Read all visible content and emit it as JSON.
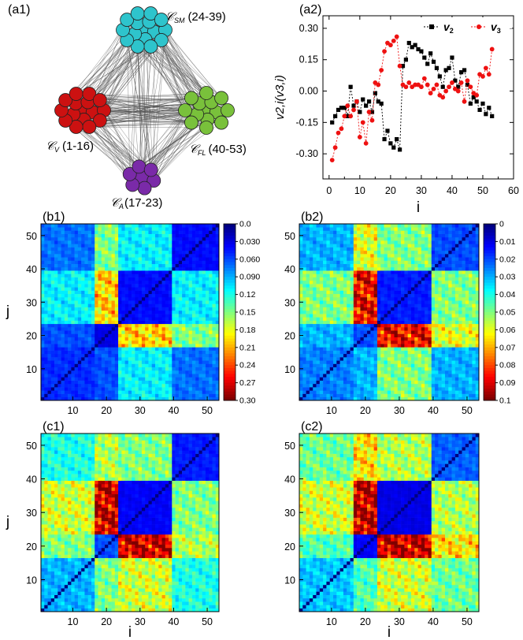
{
  "panels": {
    "a1": "(a1)",
    "a2": "(a2)",
    "b1": "(b1)",
    "b2": "(b2)",
    "c1": "(c1)",
    "c2": "(c2)"
  },
  "network": {
    "clusters": [
      {
        "id": "SM",
        "label": "𝒞SM (24-39)",
        "symbol": "𝒞",
        "sub": "SM",
        "range": "(24-39)",
        "count": 16,
        "color": "#2ec4cc"
      },
      {
        "id": "V",
        "label": "𝒞V (1-16)",
        "symbol": "𝒞",
        "sub": "V",
        "range": "(1-16)",
        "count": 16,
        "color": "#cc1111"
      },
      {
        "id": "FL",
        "label": "𝒞FL (40-53)",
        "symbol": "𝒞",
        "sub": "FL",
        "range": "(40-53)",
        "count": 14,
        "color": "#79c13b"
      },
      {
        "id": "A",
        "label": "𝒞A (17-23)",
        "symbol": "𝒞",
        "sub": "A",
        "range": "(17-23)",
        "count": 7,
        "color": "#7a2aa8"
      }
    ]
  },
  "chart_data": [
    {
      "type": "line",
      "panel": "a2",
      "xlabel": "i",
      "ylabel": "v2,i(v3,i)",
      "xlim": [
        -2,
        60
      ],
      "ylim": [
        -0.42,
        0.36
      ],
      "xticks": [
        "0",
        "10",
        "20",
        "30",
        "40",
        "50",
        "60"
      ],
      "yticks": [
        "0.30",
        "0.15",
        "0.00",
        "-0.15",
        "-0.30"
      ],
      "legend": [
        "v2",
        "v3"
      ],
      "colors": {
        "v2": "#000000",
        "v3": "#ee1111"
      },
      "x": [
        1,
        2,
        3,
        4,
        5,
        6,
        7,
        8,
        9,
        10,
        11,
        12,
        13,
        14,
        15,
        16,
        17,
        18,
        19,
        20,
        21,
        22,
        23,
        24,
        25,
        26,
        27,
        28,
        29,
        30,
        31,
        32,
        33,
        34,
        35,
        36,
        37,
        38,
        39,
        40,
        41,
        42,
        43,
        44,
        45,
        46,
        47,
        48,
        49,
        50,
        51,
        52,
        53
      ],
      "series": [
        {
          "name": "v2",
          "values": [
            -0.15,
            -0.12,
            -0.09,
            -0.08,
            -0.08,
            -0.12,
            0.02,
            -0.07,
            -0.05,
            -0.1,
            -0.04,
            -0.07,
            -0.05,
            -0.1,
            -0.01,
            -0.05,
            -0.06,
            -0.23,
            -0.19,
            -0.25,
            -0.27,
            -0.23,
            -0.28,
            0.12,
            0.15,
            0.23,
            0.21,
            0.22,
            0.2,
            0.19,
            0.16,
            0.13,
            0.18,
            0.14,
            0.11,
            0.07,
            0.02,
            0.1,
            0.11,
            0.16,
            0.05,
            0.02,
            0.09,
            0.1,
            0.03,
            -0.06,
            -0.03,
            -0.05,
            -0.09,
            -0.06,
            -0.11,
            -0.08,
            -0.12
          ]
        },
        {
          "name": "v3",
          "values": [
            -0.33,
            -0.27,
            -0.2,
            -0.18,
            -0.12,
            -0.07,
            -0.12,
            -0.09,
            -0.05,
            -0.22,
            -0.15,
            -0.25,
            -0.1,
            -0.14,
            0.04,
            0.03,
            0.1,
            0.19,
            0.23,
            0.22,
            0.24,
            0.26,
            0.12,
            0.03,
            0.02,
            0.04,
            0.02,
            0.03,
            0.03,
            0.02,
            0.06,
            0.03,
            -0.01,
            0.01,
            0.03,
            -0.02,
            -0.03,
            0.0,
            0.02,
            0.04,
            0.01,
            0.0,
            0.04,
            -0.05,
            0.05,
            0.02,
            -0.01,
            -0.02,
            0.08,
            0.07,
            0.11,
            0.08,
            0.2
          ]
        }
      ]
    },
    {
      "type": "heatmap",
      "panel": "b1",
      "xlabel": "",
      "ylabel": "j",
      "xticks": [
        "10",
        "20",
        "30",
        "40",
        "50"
      ],
      "yticks": [
        "10",
        "20",
        "30",
        "40",
        "50"
      ],
      "n": 53,
      "colorbar": [
        "0.0",
        "0.030",
        "0.060",
        "0.090",
        "0.12",
        "0.15",
        "0.18",
        "0.21",
        "0.24",
        "0.27",
        "0.30"
      ],
      "vmax": 0.3,
      "profile": {
        "VV": 0.05,
        "AA": 0.03,
        "SMSM": 0.04,
        "FLFL": 0.04,
        "VA": 0.06,
        "VSM": 0.11,
        "VFL": 0.07,
        "ASM": 0.2,
        "AFL": 0.15,
        "SMFL": 0.11
      }
    },
    {
      "type": "heatmap",
      "panel": "b2",
      "xlabel": "",
      "ylabel": "",
      "xticks": [
        "10",
        "20",
        "30",
        "40",
        "50"
      ],
      "yticks": [
        "10",
        "20",
        "30",
        "40",
        "50"
      ],
      "n": 53,
      "colorbar": [
        "0",
        "0.01",
        "0.02",
        "0.03",
        "0.04",
        "0.05",
        "0.06",
        "0.07",
        "0.08",
        "0.09",
        "0.1"
      ],
      "vmax": 0.1,
      "profile": {
        "VV": 0.025,
        "AA": 0.02,
        "SMSM": 0.015,
        "FLFL": 0.02,
        "VA": 0.03,
        "VSM": 0.05,
        "VFL": 0.03,
        "ASM": 0.088,
        "AFL": 0.06,
        "SMFL": 0.05
      }
    },
    {
      "type": "heatmap",
      "panel": "c1",
      "xlabel": "i",
      "ylabel": "j",
      "xticks": [
        "10",
        "20",
        "30",
        "40",
        "50"
      ],
      "yticks": [
        "10",
        "20",
        "30",
        "40",
        "50"
      ],
      "n": 53,
      "vmax": 1.0,
      "profile": {
        "VV": 0.3,
        "AA": 0.2,
        "SMSM": 0.12,
        "FLFL": 0.15,
        "VA": 0.5,
        "VSM": 0.58,
        "VFL": 0.4,
        "ASM": 0.92,
        "AFL": 0.55,
        "SMFL": 0.5
      }
    },
    {
      "type": "heatmap",
      "panel": "c2",
      "xlabel": "i",
      "ylabel": "",
      "xticks": [
        "10",
        "20",
        "30",
        "40",
        "50"
      ],
      "yticks": [
        "10",
        "20",
        "30",
        "40",
        "50"
      ],
      "n": 53,
      "vmax": 1.0,
      "profile": {
        "VV": 0.32,
        "AA": 0.12,
        "SMSM": 0.1,
        "FLFL": 0.22,
        "VA": 0.45,
        "VSM": 0.58,
        "VFL": 0.48,
        "ASM": 0.93,
        "AFL": 0.65,
        "SMFL": 0.55
      }
    }
  ]
}
